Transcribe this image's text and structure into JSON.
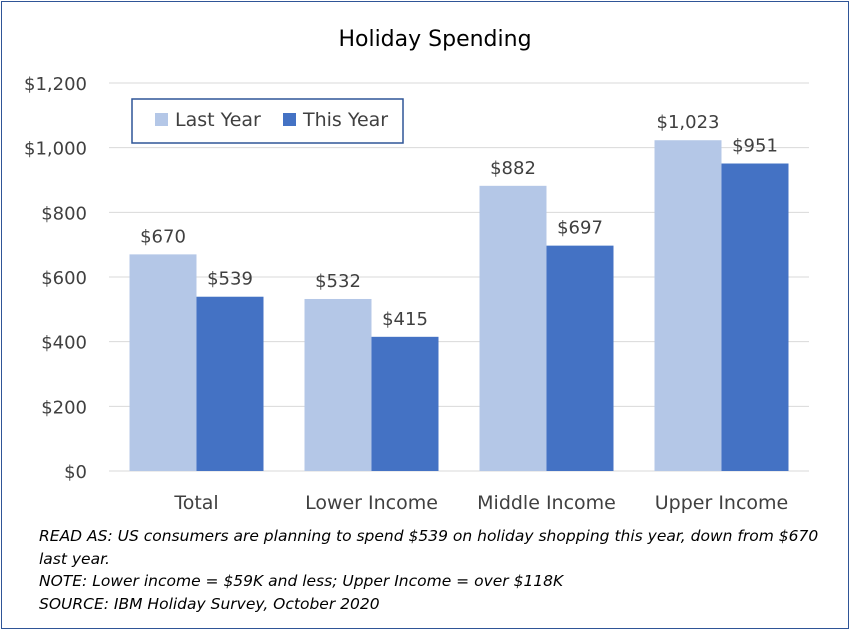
{
  "chart_data": {
    "type": "bar",
    "title": "Holiday Spending",
    "categories": [
      "Total",
      "Lower Income",
      "Middle Income",
      "Upper Income"
    ],
    "series": [
      {
        "name": "Last Year",
        "values": [
          670,
          532,
          882,
          1023
        ],
        "labels": [
          "$670",
          "$532",
          "$882",
          "$1,023"
        ],
        "color": "#b4c7e7"
      },
      {
        "name": "This Year",
        "values": [
          539,
          415,
          697,
          951
        ],
        "labels": [
          "$539",
          "$415",
          "$697",
          "$951"
        ],
        "color": "#4472c4"
      }
    ],
    "ylim": [
      0,
      1200
    ],
    "yticks": [
      0,
      200,
      400,
      600,
      800,
      1000,
      1200
    ],
    "ytick_labels": [
      "$0",
      "$200",
      "$400",
      "$600",
      "$800",
      "$1,000",
      "$1,200"
    ],
    "grid": true,
    "legend_position": "top-left",
    "xlabel": "",
    "ylabel": ""
  },
  "notes": {
    "read_as": "READ AS: US consumers are planning to spend $539 on holiday shopping this year, down from $670 last year.",
    "note": "NOTE: Lower income = $59K and less; Upper Income = over $118K",
    "source": "SOURCE: IBM Holiday Survey, October 2020"
  },
  "colors": {
    "frame_border": "#2f5597",
    "gridline": "#d9d9d9",
    "axis_line": "#d9d9d9"
  }
}
